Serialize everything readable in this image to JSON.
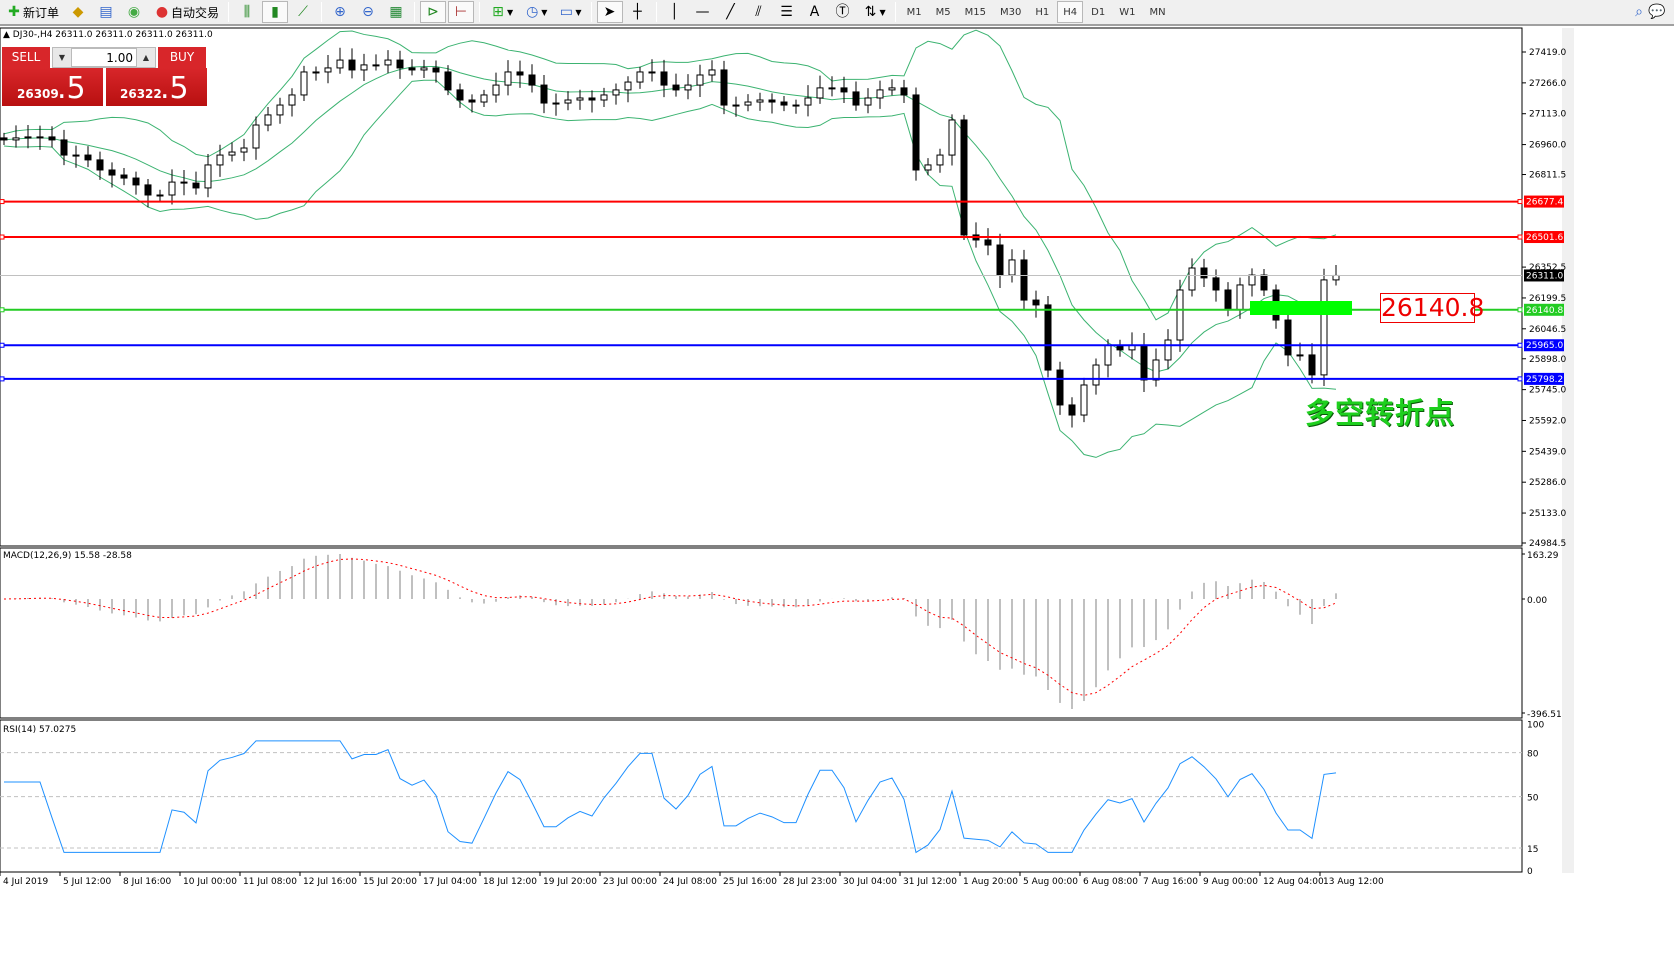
{
  "toolbar": {
    "new_order": "新订单",
    "auto_trading": "自动交易",
    "timeframes": [
      "M1",
      "M5",
      "M15",
      "M30",
      "H1",
      "H4",
      "D1",
      "W1",
      "MN"
    ],
    "active_timeframe": "H4"
  },
  "chart": {
    "symbol_line": "DJ30-,H4  26311.0 26311.0 26311.0 26311.0",
    "sell_label": "SELL",
    "buy_label": "BUY",
    "lot": "1.00",
    "sell_price_small": "26309",
    "sell_price_big": ".5",
    "buy_price_small": "26322",
    "buy_price_big": ".5",
    "annotation": "多空转折点",
    "price_box": "26140.8",
    "price_ticks": [
      "27419.0",
      "27266.0",
      "27113.0",
      "26960.0",
      "26811.5",
      "26352.5",
      "26199.5",
      "26046.5",
      "25898.0",
      "25745.0",
      "25592.0",
      "25439.0",
      "25286.0",
      "25133.0",
      "24984.5"
    ],
    "hlines": [
      {
        "price": 26677.4,
        "label": "26677.4",
        "color": "#ff0000"
      },
      {
        "price": 26501.6,
        "label": "26501.6",
        "color": "#ff0000"
      },
      {
        "price": 26311.0,
        "label": "26311.0",
        "color": "#000000"
      },
      {
        "price": 26140.8,
        "label": "26140.8",
        "color": "#22cc22"
      },
      {
        "price": 25965.0,
        "label": "25965.0",
        "color": "#0000ff"
      },
      {
        "price": 25798.2,
        "label": "25798.2",
        "color": "#0000ff"
      }
    ],
    "closes": [
      26983,
      26993,
      26998,
      26998,
      26983,
      26908,
      26908,
      26884,
      26834,
      26809,
      26794,
      26760,
      26710,
      26710,
      26774,
      26769,
      26745,
      26859,
      26908,
      26923,
      26943,
      27057,
      27107,
      27156,
      27206,
      27320,
      27320,
      27340,
      27379,
      27330,
      27355,
      27355,
      27379,
      27340,
      27330,
      27340,
      27320,
      27231,
      27181,
      27171,
      27206,
      27255,
      27320,
      27305,
      27255,
      27166,
      27166,
      27181,
      27191,
      27181,
      27206,
      27231,
      27270,
      27320,
      27320,
      27255,
      27231,
      27255,
      27305,
      27330,
      27156,
      27156,
      27171,
      27181,
      27171,
      27156,
      27156,
      27191,
      27241,
      27241,
      27221,
      27156,
      27191,
      27231,
      27241,
      27206,
      26834,
      26859,
      26908,
      27082,
      26512,
      26487,
      26462,
      26313,
      26388,
      26189,
      26165,
      25842,
      25669,
      25619,
      25768,
      25867,
      25966,
      25942,
      25966,
      25793,
      25892,
      25991,
      26239,
      26348,
      26299,
      26239,
      26140,
      26264,
      26313,
      26239,
      26090,
      25917,
      25917,
      25818,
      26289,
      26311
    ],
    "band_color": "#3cb371"
  },
  "macd": {
    "label": "MACD(12,26,9) 15.58 -28.58",
    "ticks": [
      "163.29",
      "0.00",
      "-396.51"
    ],
    "signal_color": "#ff0000",
    "hist_color": "#c0c0c0"
  },
  "rsi": {
    "label": "RSI(14) 57.0275",
    "ticks": [
      "100",
      "80",
      "50",
      "15",
      "0"
    ],
    "line_color": "#1e90ff"
  },
  "time_labels": [
    "4 Jul 2019",
    "5 Jul 12:00",
    "8 Jul 16:00",
    "10 Jul 00:00",
    "11 Jul 08:00",
    "12 Jul 16:00",
    "15 Jul 20:00",
    "17 Jul 04:00",
    "18 Jul 12:00",
    "19 Jul 20:00",
    "23 Jul 00:00",
    "24 Jul 08:00",
    "25 Jul 16:00",
    "28 Jul 23:00",
    "30 Jul 04:00",
    "31 Jul 12:00",
    "1 Aug 20:00",
    "5 Aug 00:00",
    "6 Aug 08:00",
    "7 Aug 16:00",
    "9 Aug 00:00",
    "12 Aug 04:00",
    "13 Aug 12:00"
  ]
}
